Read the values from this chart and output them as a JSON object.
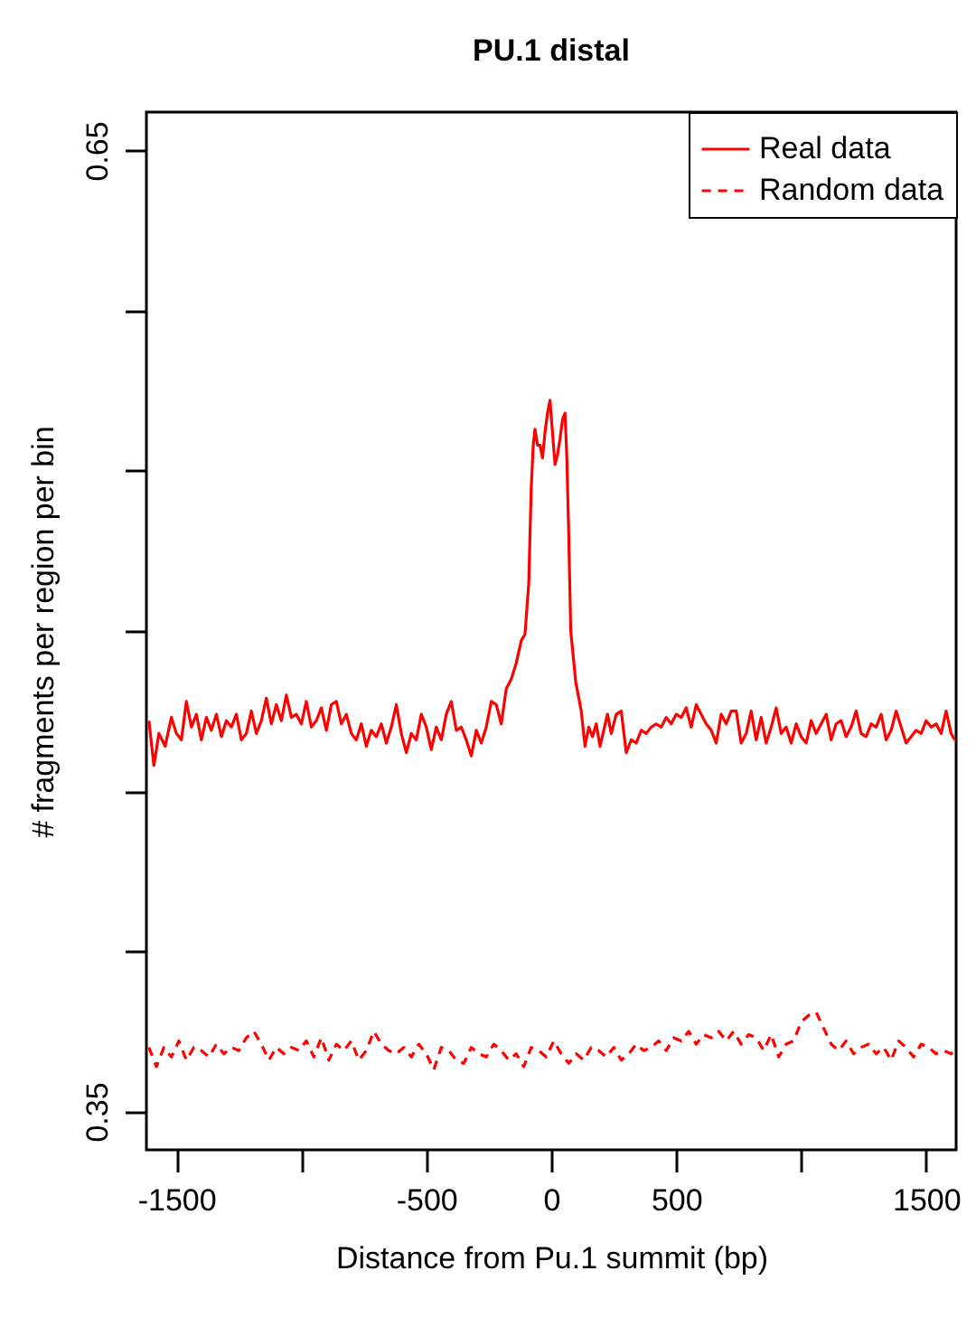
{
  "chart_data": {
    "type": "line",
    "title": "PU.1 distal",
    "xlabel": "Distance from Pu.1 summit (bp)",
    "ylabel": "# fragments per region per bin",
    "xlim": [
      -1620,
      1620
    ],
    "xticks": [
      -1500,
      {
        "value": -1000,
        "label": null
      },
      -500,
      0,
      500,
      {
        "value": 1000,
        "label": null
      },
      1500
    ],
    "ylim": [
      0.338,
      0.662
    ],
    "yticks": [
      0.35,
      {
        "value": 0.4,
        "label": null
      },
      {
        "value": 0.45,
        "label": null
      },
      {
        "value": 0.5,
        "label": null
      },
      {
        "value": 0.55,
        "label": null
      },
      {
        "value": 0.6,
        "label": null
      },
      0.65
    ],
    "grid": false,
    "legend": "top right",
    "series": [
      {
        "name": "Real data",
        "color": "#ff0000",
        "line_style": "solid",
        "x": [
          -1610,
          -1590,
          -1570,
          -1545,
          -1520,
          -1500,
          -1480,
          -1460,
          -1440,
          -1420,
          -1400,
          -1380,
          -1360,
          -1340,
          -1320,
          -1300,
          -1280,
          -1260,
          -1240,
          -1220,
          -1200,
          -1180,
          -1160,
          -1140,
          -1120,
          -1100,
          -1080,
          -1060,
          -1040,
          -1020,
          -1000,
          -980,
          -960,
          -940,
          -920,
          -900,
          -880,
          -860,
          -840,
          -820,
          -800,
          -780,
          -760,
          -740,
          -720,
          -700,
          -680,
          -660,
          -640,
          -620,
          -600,
          -580,
          -560,
          -540,
          -520,
          -500,
          -480,
          -460,
          -440,
          -420,
          -400,
          -380,
          -360,
          -340,
          -320,
          -300,
          -280,
          -260,
          -240,
          -220,
          -200,
          -180,
          -160,
          -140,
          -120,
          -105,
          -90,
          -80,
          -72,
          -65,
          -55,
          -45,
          -35,
          -25,
          -15,
          -5,
          5,
          15,
          25,
          35,
          45,
          55,
          62,
          70,
          78,
          88,
          98,
          108,
          120,
          135,
          150,
          165,
          180,
          195,
          210,
          225,
          240,
          260,
          280,
          300,
          320,
          340,
          360,
          380,
          400,
          420,
          440,
          460,
          480,
          500,
          520,
          540,
          560,
          580,
          600,
          620,
          640,
          660,
          680,
          700,
          720,
          740,
          760,
          780,
          800,
          820,
          840,
          860,
          880,
          900,
          920,
          940,
          960,
          980,
          1000,
          1020,
          1040,
          1060,
          1080,
          1100,
          1120,
          1140,
          1160,
          1180,
          1200,
          1220,
          1240,
          1260,
          1280,
          1300,
          1320,
          1340,
          1360,
          1380,
          1400,
          1420,
          1440,
          1460,
          1480,
          1500,
          1520,
          1540,
          1560,
          1580,
          1600,
          1615
        ],
        "values": [
          0.472,
          0.458,
          0.468,
          0.464,
          0.473,
          0.468,
          0.466,
          0.478,
          0.47,
          0.474,
          0.466,
          0.473,
          0.469,
          0.474,
          0.467,
          0.472,
          0.47,
          0.474,
          0.466,
          0.468,
          0.475,
          0.468,
          0.472,
          0.479,
          0.471,
          0.477,
          0.472,
          0.48,
          0.473,
          0.474,
          0.471,
          0.478,
          0.47,
          0.472,
          0.476,
          0.469,
          0.477,
          0.478,
          0.471,
          0.474,
          0.468,
          0.466,
          0.471,
          0.464,
          0.469,
          0.467,
          0.471,
          0.465,
          0.47,
          0.477,
          0.468,
          0.462,
          0.468,
          0.466,
          0.474,
          0.47,
          0.463,
          0.47,
          0.466,
          0.474,
          0.478,
          0.469,
          0.47,
          0.466,
          0.461,
          0.469,
          0.465,
          0.47,
          0.478,
          0.477,
          0.471,
          0.482,
          0.485,
          0.49,
          0.497,
          0.499,
          0.515,
          0.545,
          0.558,
          0.563,
          0.558,
          0.558,
          0.554,
          0.562,
          0.568,
          0.572,
          0.562,
          0.552,
          0.555,
          0.56,
          0.566,
          0.568,
          0.555,
          0.53,
          0.5,
          0.492,
          0.484,
          0.48,
          0.475,
          0.464,
          0.47,
          0.467,
          0.471,
          0.464,
          0.469,
          0.474,
          0.468,
          0.474,
          0.475,
          0.462,
          0.466,
          0.465,
          0.469,
          0.468,
          0.47,
          0.471,
          0.47,
          0.473,
          0.471,
          0.474,
          0.473,
          0.476,
          0.47,
          0.477,
          0.474,
          0.471,
          0.469,
          0.465,
          0.474,
          0.471,
          0.475,
          0.475,
          0.465,
          0.468,
          0.475,
          0.466,
          0.473,
          0.465,
          0.47,
          0.476,
          0.468,
          0.47,
          0.465,
          0.471,
          0.467,
          0.465,
          0.472,
          0.468,
          0.471,
          0.474,
          0.466,
          0.471,
          0.472,
          0.467,
          0.47,
          0.475,
          0.468,
          0.467,
          0.471,
          0.47,
          0.474,
          0.466,
          0.469,
          0.475,
          0.47,
          0.465,
          0.467,
          0.469,
          0.468,
          0.472,
          0.47,
          0.471,
          0.468,
          0.475,
          0.468,
          0.466
        ]
      },
      {
        "name": "Random data",
        "color": "#ff0000",
        "line_style": "dashed",
        "x": [
          -1610,
          -1580,
          -1550,
          -1520,
          -1490,
          -1460,
          -1430,
          -1400,
          -1370,
          -1340,
          -1310,
          -1280,
          -1250,
          -1220,
          -1190,
          -1160,
          -1130,
          -1100,
          -1070,
          -1040,
          -1010,
          -980,
          -950,
          -920,
          -890,
          -860,
          -830,
          -800,
          -770,
          -740,
          -710,
          -680,
          -650,
          -620,
          -590,
          -560,
          -530,
          -500,
          -470,
          -440,
          -410,
          -380,
          -350,
          -320,
          -290,
          -260,
          -230,
          -200,
          -170,
          -140,
          -110,
          -80,
          -50,
          -20,
          10,
          40,
          70,
          100,
          130,
          160,
          190,
          220,
          250,
          280,
          310,
          340,
          370,
          400,
          430,
          460,
          490,
          520,
          550,
          580,
          610,
          640,
          670,
          700,
          730,
          760,
          790,
          820,
          850,
          880,
          910,
          940,
          970,
          1000,
          1030,
          1060,
          1090,
          1120,
          1150,
          1180,
          1210,
          1240,
          1270,
          1300,
          1330,
          1360,
          1390,
          1420,
          1450,
          1480,
          1510,
          1540,
          1570,
          1600,
          1615
        ],
        "values": [
          0.37,
          0.364,
          0.37,
          0.367,
          0.372,
          0.366,
          0.37,
          0.369,
          0.367,
          0.371,
          0.368,
          0.37,
          0.369,
          0.373,
          0.375,
          0.371,
          0.366,
          0.37,
          0.368,
          0.37,
          0.369,
          0.372,
          0.367,
          0.373,
          0.366,
          0.371,
          0.369,
          0.372,
          0.366,
          0.369,
          0.375,
          0.371,
          0.369,
          0.368,
          0.37,
          0.367,
          0.371,
          0.368,
          0.363,
          0.37,
          0.369,
          0.366,
          0.365,
          0.37,
          0.368,
          0.367,
          0.371,
          0.369,
          0.366,
          0.368,
          0.364,
          0.37,
          0.369,
          0.367,
          0.372,
          0.368,
          0.365,
          0.368,
          0.366,
          0.37,
          0.369,
          0.367,
          0.37,
          0.366,
          0.368,
          0.371,
          0.369,
          0.37,
          0.372,
          0.369,
          0.373,
          0.372,
          0.375,
          0.371,
          0.374,
          0.373,
          0.375,
          0.372,
          0.375,
          0.371,
          0.374,
          0.373,
          0.369,
          0.374,
          0.367,
          0.371,
          0.372,
          0.378,
          0.38,
          0.381,
          0.376,
          0.371,
          0.369,
          0.372,
          0.368,
          0.37,
          0.371,
          0.368,
          0.37,
          0.366,
          0.372,
          0.37,
          0.367,
          0.371,
          0.37,
          0.368,
          0.369,
          0.368,
          0.369
        ]
      }
    ]
  }
}
